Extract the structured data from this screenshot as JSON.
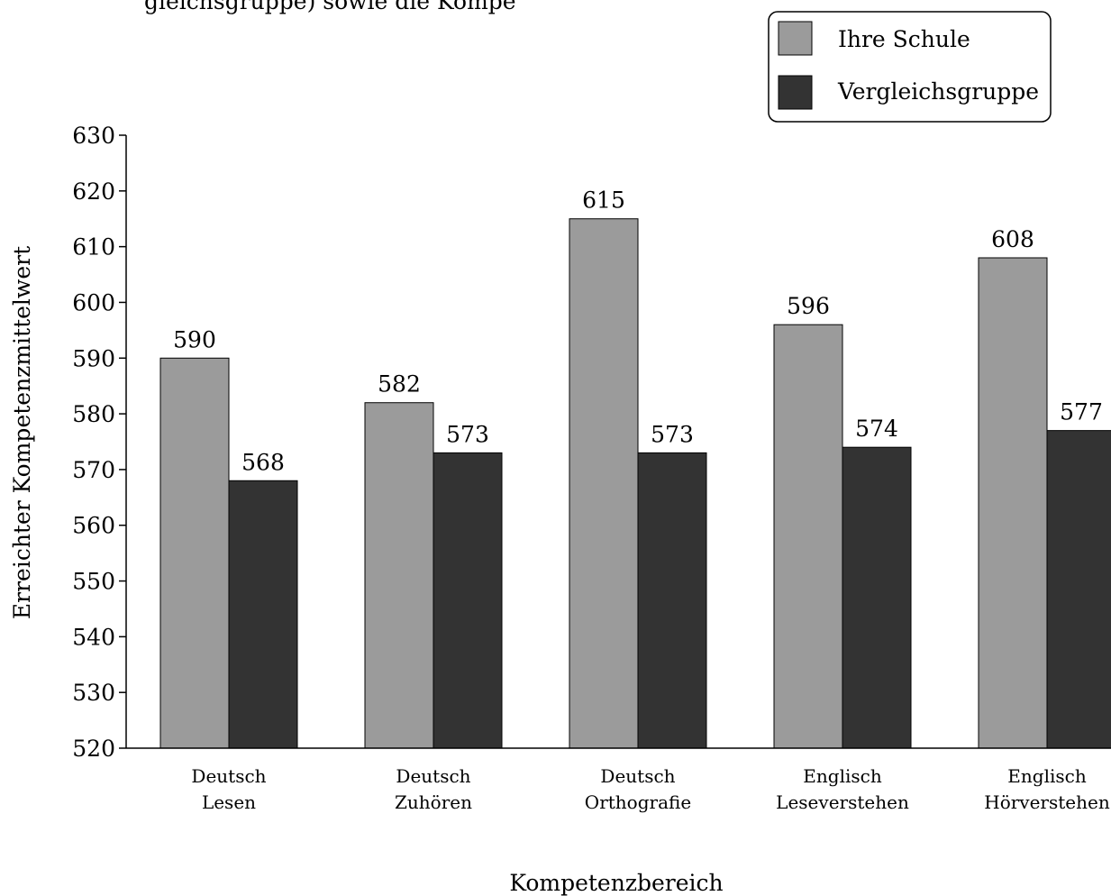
{
  "chart_data": {
    "type": "bar",
    "title": "",
    "xlabel": "Kompetenzbereich",
    "ylabel": "Erreichter Kompetenzmittelwert",
    "ylim": [
      520,
      630
    ],
    "yticks": [
      520,
      530,
      540,
      550,
      560,
      570,
      580,
      590,
      600,
      610,
      620,
      630
    ],
    "grid": false,
    "legend_position": "top-right",
    "categories": [
      {
        "line1": "Deutsch",
        "line2": "Lesen"
      },
      {
        "line1": "Deutsch",
        "line2": "Zuhören"
      },
      {
        "line1": "Deutsch",
        "line2": "Orthografie"
      },
      {
        "line1": "Englisch",
        "line2": "Leseverstehen"
      },
      {
        "line1": "Englisch",
        "line2": "Hörverstehen"
      }
    ],
    "series": [
      {
        "name": "Ihre Schule",
        "color": "#9b9b9b",
        "values": [
          590,
          582,
          615,
          596,
          608
        ]
      },
      {
        "name": "Vergleichsgruppe",
        "color": "#333333",
        "values": [
          568,
          573,
          573,
          574,
          577
        ]
      }
    ],
    "top_text": "gleichsgruppe) sowie die Kompe"
  }
}
